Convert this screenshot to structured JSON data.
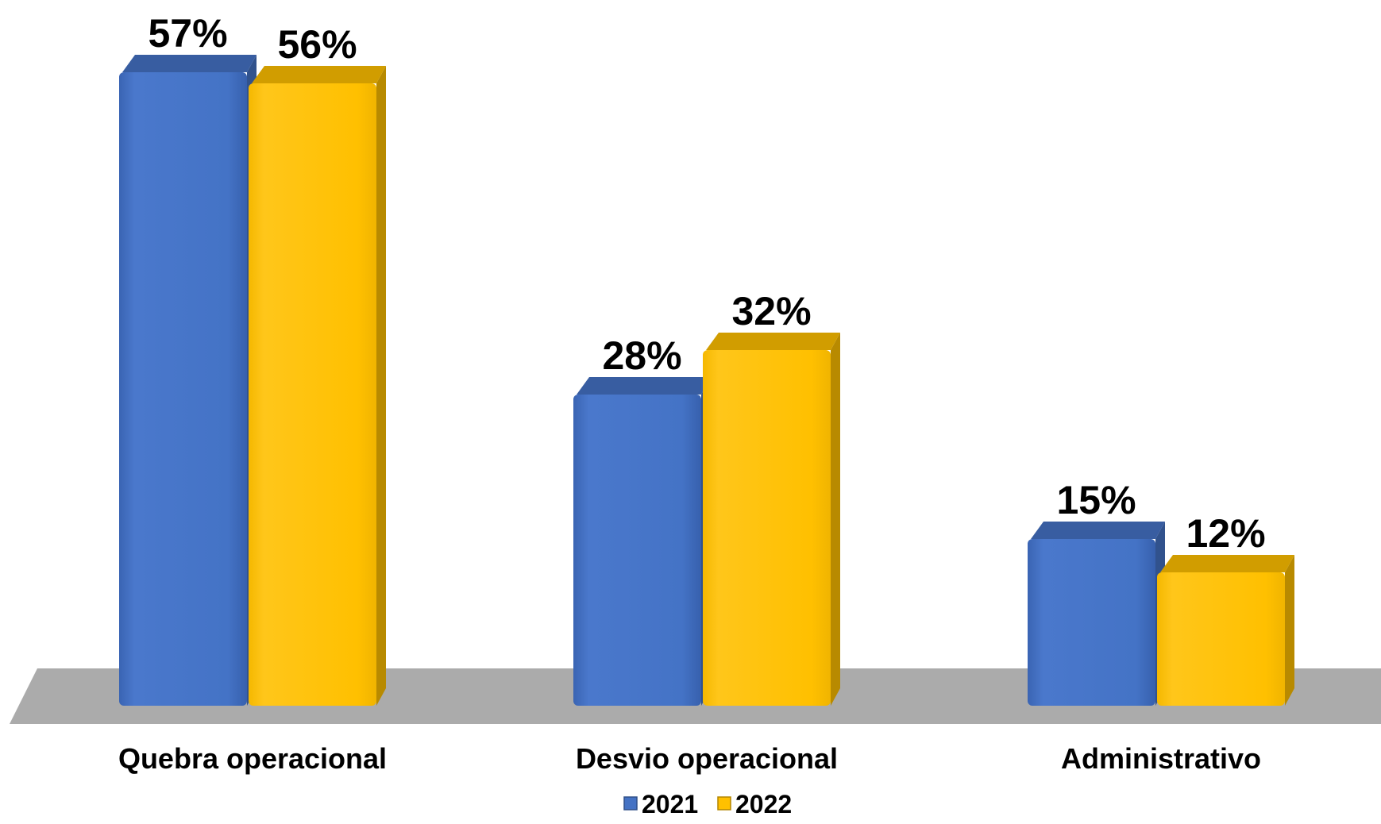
{
  "chart_data": {
    "type": "bar",
    "categories": [
      "Quebra operacional",
      "Desvio operacional",
      "Administrativo"
    ],
    "series": [
      {
        "name": "2021",
        "values": [
          57,
          28,
          15
        ],
        "labels": [
          "57%",
          "28%",
          "15%"
        ],
        "color": "#4472C4"
      },
      {
        "name": "2022",
        "values": [
          56,
          32,
          12
        ],
        "labels": [
          "56%",
          "32%",
          "12%"
        ],
        "color": "#FFC000"
      }
    ],
    "title": "",
    "xlabel": "",
    "ylabel": "",
    "ylim": [
      0,
      60
    ],
    "grid": false,
    "legend_position": "bottom",
    "style": "3d-clustered-column",
    "floor_color": "#ABABAB"
  }
}
